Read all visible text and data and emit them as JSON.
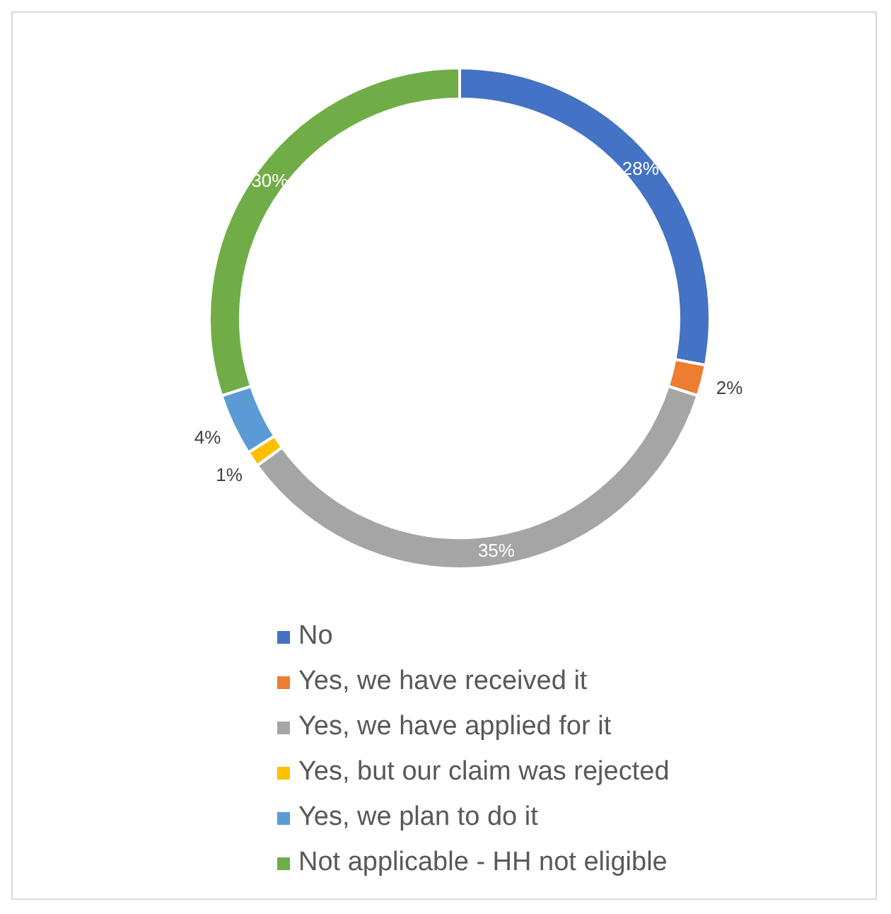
{
  "chart_data": {
    "type": "donut",
    "categories": [
      "No",
      "Yes, we have received it",
      "Yes, we have applied for it",
      "Yes, but our claim was rejected",
      "Yes, we plan to do it",
      "Not applicable - HH not eligible"
    ],
    "values": [
      28,
      2,
      35,
      1,
      4,
      30
    ],
    "colors": [
      "#4472c4",
      "#ed7d31",
      "#a5a5a5",
      "#ffc000",
      "#5b9bd5",
      "#70ad47"
    ],
    "value_labels": [
      "28%",
      "2%",
      "35%",
      "1%",
      "4%",
      "30%"
    ],
    "legend": "bottom"
  }
}
